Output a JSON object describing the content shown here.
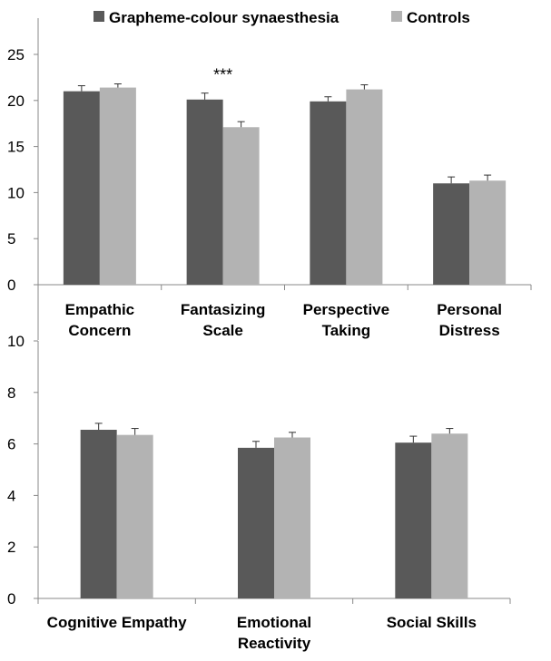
{
  "legend": {
    "items": [
      {
        "label": "Grapheme-colour synaesthesia",
        "color": "#595959"
      },
      {
        "label": "Controls",
        "color": "#b3b3b3"
      }
    ],
    "placement": "top"
  },
  "chart_data": [
    {
      "type": "bar",
      "categories": [
        [
          "Empathic",
          "Concern"
        ],
        [
          "Fantasizing",
          "Scale"
        ],
        [
          "Perspective",
          "Taking"
        ],
        [
          "Personal",
          "Distress"
        ]
      ],
      "series": [
        {
          "name": "Grapheme-colour synaesthesia",
          "values": [
            21.0,
            20.1,
            19.9,
            11.0
          ],
          "errors": [
            0.6,
            0.7,
            0.5,
            0.7
          ]
        },
        {
          "name": "Controls",
          "values": [
            21.4,
            17.1,
            21.2,
            11.3
          ],
          "errors": [
            0.4,
            0.6,
            0.5,
            0.6
          ]
        }
      ],
      "ylim": [
        0,
        25
      ],
      "yticks": [
        "0",
        "5",
        "10",
        "15",
        "20",
        "25"
      ],
      "annotations": [
        {
          "category_index": 1,
          "text": "***"
        }
      ],
      "grid": false
    },
    {
      "type": "bar",
      "categories": [
        [
          "Cognitive Empathy"
        ],
        [
          "Emotional",
          "Reactivity"
        ],
        [
          "Social Skills"
        ]
      ],
      "series": [
        {
          "name": "Grapheme-colour synaesthesia",
          "values": [
            6.55,
            5.85,
            6.05
          ],
          "errors": [
            0.25,
            0.25,
            0.25
          ]
        },
        {
          "name": "Controls",
          "values": [
            6.35,
            6.25,
            6.4
          ],
          "errors": [
            0.25,
            0.2,
            0.2
          ]
        }
      ],
      "ylim": [
        0,
        10
      ],
      "yticks": [
        "0",
        "2",
        "4",
        "6",
        "8",
        "10"
      ],
      "annotations": [],
      "grid": false
    }
  ]
}
